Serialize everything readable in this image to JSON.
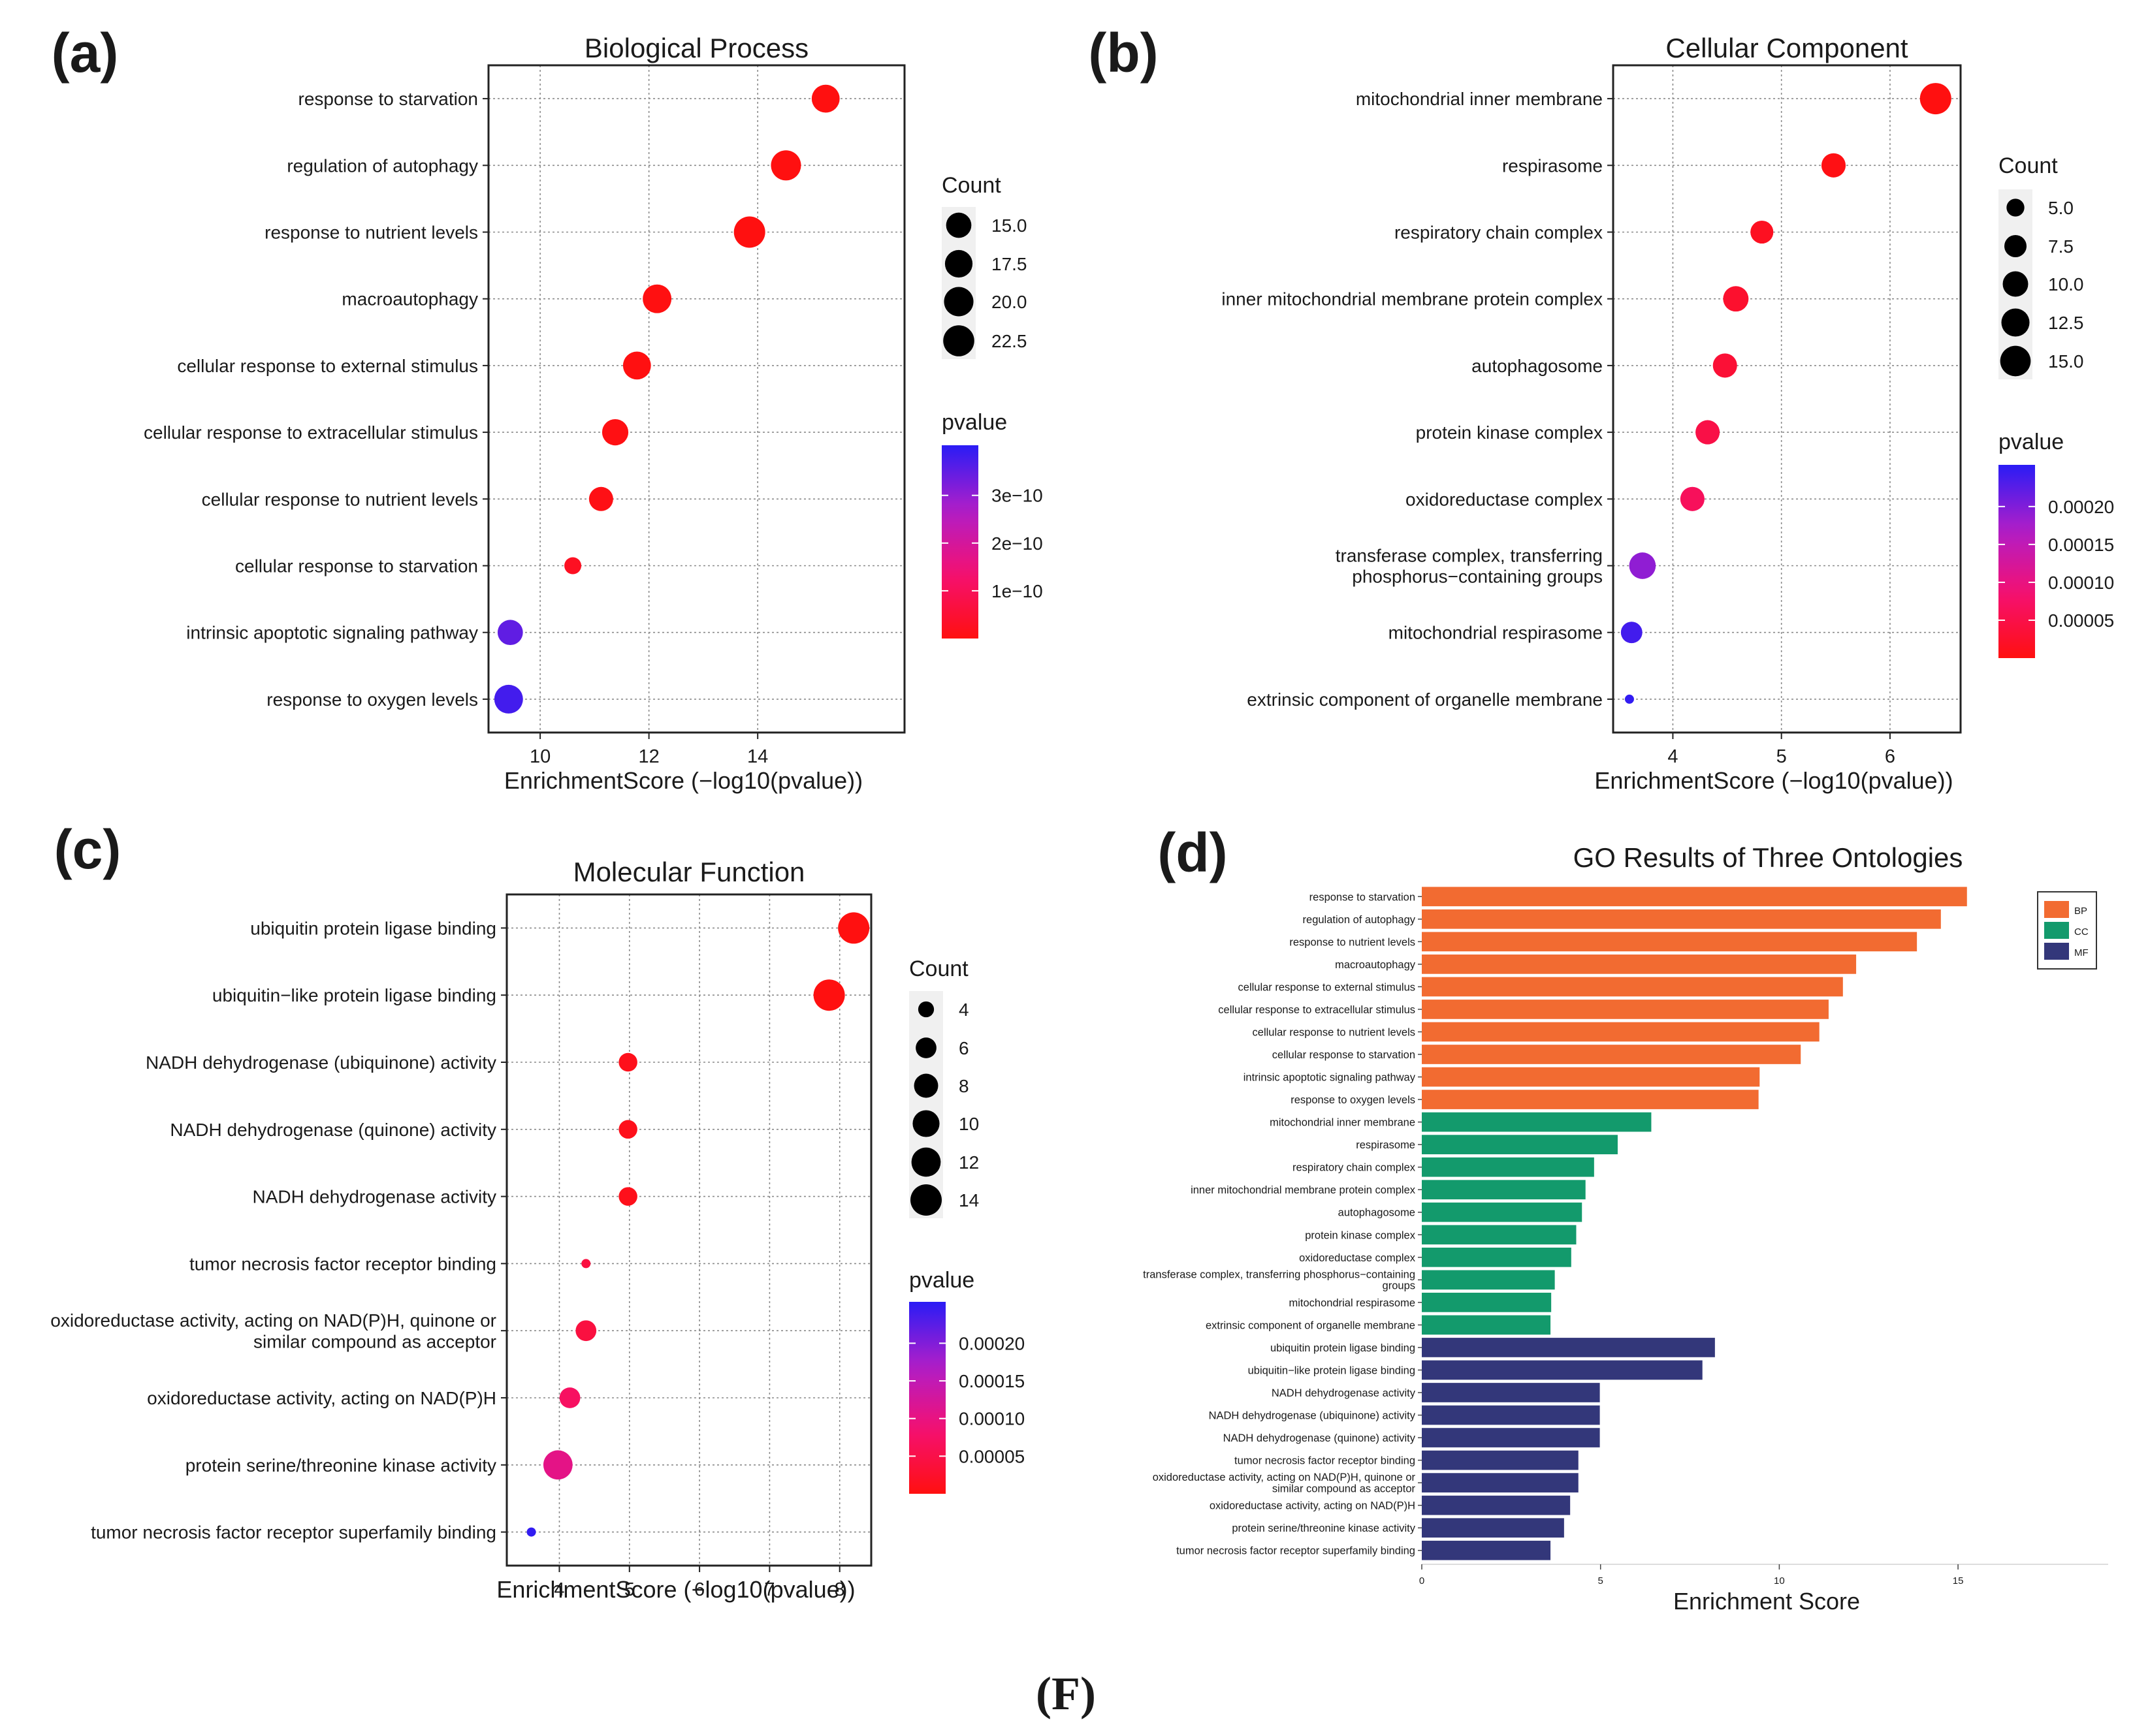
{
  "figure_label": "(F)",
  "chart_data": [
    {
      "panel": "(a)",
      "type": "scatter",
      "title": "Biological Process",
      "xlabel": "EnrichmentScore (−log10(pvalue))",
      "xlim": [
        9.05,
        16.7
      ],
      "xticks": [
        10,
        12,
        14
      ],
      "grid": true,
      "categories": [
        "response to starvation",
        "regulation of autophagy",
        "response to nutrient levels",
        "macroautophagy",
        "cellular response to external stimulus",
        "cellular response to extracellular stimulus",
        "cellular response to nutrient levels",
        "cellular response to starvation",
        "intrinsic apoptotic signaling pathway",
        "response to oxygen levels"
      ],
      "x": [
        15.25,
        14.52,
        13.85,
        12.15,
        11.78,
        11.38,
        11.12,
        10.6,
        9.45,
        9.42
      ],
      "count": [
        18,
        21,
        23,
        19,
        18,
        16,
        14,
        11,
        15,
        19
      ],
      "pvalue": [
        5.6e-16,
        3e-15,
        1.4e-14,
        7.1e-13,
        1.7e-12,
        4.2e-12,
        7.6e-12,
        2.5e-11,
        3.5e-10,
        3.8e-10
      ],
      "legend_count": {
        "title": "Count",
        "values": [
          15.0,
          17.5,
          20.0,
          22.5
        ],
        "labels": [
          "15.0",
          "17.5",
          "20.0",
          "22.5"
        ],
        "size_domain": [
          11,
          23
        ]
      },
      "legend_pvalue": {
        "title": "pvalue",
        "domain": [
          0,
          4.05e-10
        ],
        "ticks": [
          1e-10,
          2e-10,
          3e-10
        ],
        "labels": [
          "1e−10",
          "2e−10",
          "3e−10"
        ]
      },
      "legend_placement": "right"
    },
    {
      "panel": "(b)",
      "type": "scatter",
      "title": "Cellular Component",
      "xlabel": "EnrichmentScore (−log10(pvalue))",
      "xlim": [
        3.45,
        6.65
      ],
      "xticks": [
        4,
        5,
        6
      ],
      "grid": true,
      "categories": [
        "mitochondrial inner membrane",
        "respirasome",
        "respiratory chain complex",
        "inner mitochondrial membrane protein complex",
        "autophagosome",
        "protein kinase complex",
        "oxidoreductase complex",
        "transferase complex, transferring phosphorus−containing groups",
        "mitochondrial respirasome",
        "extrinsic component of organelle membrane"
      ],
      "x": [
        6.42,
        5.48,
        4.82,
        4.58,
        4.48,
        4.32,
        4.18,
        3.72,
        3.62,
        3.6
      ],
      "count": [
        16,
        9,
        8,
        10,
        9,
        9,
        9,
        11,
        7,
        3
      ],
      "pvalue": [
        3.8e-07,
        3.3e-06,
        1.5e-05,
        2.6e-05,
        3.3e-05,
        4.8e-05,
        6.6e-05,
        0.00019,
        0.00024,
        0.00025
      ],
      "legend_count": {
        "title": "Count",
        "values": [
          5.0,
          7.5,
          10.0,
          12.5,
          15.0
        ],
        "labels": [
          "5.0",
          "7.5",
          "10.0",
          "12.5",
          "15.0"
        ],
        "size_domain": [
          3,
          16
        ]
      },
      "legend_pvalue": {
        "title": "pvalue",
        "domain": [
          0,
          0.000255
        ],
        "ticks": [
          5e-05,
          0.0001,
          0.00015,
          0.0002
        ],
        "labels": [
          "0.00005",
          "0.00010",
          "0.00015",
          "0.00020"
        ]
      },
      "legend_placement": "right"
    },
    {
      "panel": "(c)",
      "type": "scatter",
      "title": "Molecular Function",
      "xlabel": "EnrichmentScore (−log10(pvalue))",
      "xlim": [
        3.25,
        8.45
      ],
      "xticks": [
        4,
        5,
        6,
        7,
        8
      ],
      "grid": true,
      "categories": [
        "ubiquitin protein ligase binding",
        "ubiquitin−like protein ligase binding",
        "NADH dehydrogenase (ubiquinone) activity",
        "NADH dehydrogenase (quinone) activity",
        "NADH dehydrogenase activity",
        "tumor necrosis factor receptor binding",
        "oxidoreductase activity, acting on NAD(P)H, quinone or similar compound as acceptor",
        "oxidoreductase activity, acting on NAD(P)H",
        "protein serine/threonine kinase activity",
        "tumor necrosis factor receptor superfamily binding"
      ],
      "x": [
        8.2,
        7.85,
        4.98,
        4.98,
        4.98,
        4.38,
        4.38,
        4.15,
        3.98,
        3.6
      ],
      "count": [
        14,
        14,
        5,
        5,
        5,
        3,
        6,
        6,
        12,
        3
      ],
      "pvalue": [
        6.3e-09,
        1.4e-08,
        1e-05,
        1e-05,
        1e-05,
        4.2e-05,
        4.2e-05,
        7.1e-05,
        0.000105,
        0.00025
      ],
      "legend_count": {
        "title": "Count",
        "values": [
          4,
          6,
          8,
          10,
          12,
          14
        ],
        "labels": [
          "4",
          "6",
          "8",
          "10",
          "12",
          "14"
        ],
        "size_domain": [
          3,
          14
        ]
      },
      "legend_pvalue": {
        "title": "pvalue",
        "domain": [
          0,
          0.000255
        ],
        "ticks": [
          5e-05,
          0.0001,
          0.00015,
          0.0002
        ],
        "labels": [
          "0.00005",
          "0.00010",
          "0.00015",
          "0.00020"
        ]
      },
      "legend_placement": "right"
    },
    {
      "panel": "(d)",
      "type": "bar",
      "orientation": "horizontal",
      "title": "GO Results of Three Ontologies",
      "xlabel": "Enrichment Score",
      "xlim": [
        0,
        19.2
      ],
      "xticks": [
        0,
        5,
        10,
        15
      ],
      "grid": false,
      "legend": {
        "placement": "top-right",
        "entries": [
          {
            "name": "BP",
            "color": "#f26b31"
          },
          {
            "name": "CC",
            "color": "#139a6c"
          },
          {
            "name": "MF",
            "color": "#33377a"
          }
        ]
      },
      "categories": [
        "response to starvation",
        "regulation of autophagy",
        "response to nutrient levels",
        "macroautophagy",
        "cellular response to external stimulus",
        "cellular response to extracellular stimulus",
        "cellular response to nutrient levels",
        "cellular response to starvation",
        "intrinsic apoptotic signaling pathway",
        "response to oxygen levels",
        "mitochondrial inner membrane",
        "respirasome",
        "respiratory chain complex",
        "inner mitochondrial membrane protein complex",
        "autophagosome",
        "protein kinase complex",
        "oxidoreductase complex",
        "transferase complex, transferring phosphorus−containing groups",
        "mitochondrial respirasome",
        "extrinsic component of organelle membrane",
        "ubiquitin protein ligase binding",
        "ubiquitin−like protein ligase binding",
        "NADH dehydrogenase activity",
        "NADH dehydrogenase (ubiquinone) activity",
        "NADH dehydrogenase (quinone) activity",
        "tumor necrosis factor receptor binding",
        "oxidoreductase activity, acting on NAD(P)H, quinone or similar compound as acceptor",
        "oxidoreductase activity, acting on NAD(P)H",
        "protein serine/threonine kinase activity",
        "tumor necrosis factor receptor superfamily binding"
      ],
      "values": [
        15.25,
        14.52,
        13.85,
        12.15,
        11.78,
        11.38,
        11.12,
        10.6,
        9.45,
        9.42,
        6.42,
        5.48,
        4.82,
        4.58,
        4.48,
        4.32,
        4.18,
        3.72,
        3.62,
        3.6,
        8.2,
        7.85,
        4.98,
        4.98,
        4.98,
        4.38,
        4.38,
        4.15,
        3.98,
        3.6
      ],
      "groups": [
        "BP",
        "BP",
        "BP",
        "BP",
        "BP",
        "BP",
        "BP",
        "BP",
        "BP",
        "BP",
        "CC",
        "CC",
        "CC",
        "CC",
        "CC",
        "CC",
        "CC",
        "CC",
        "CC",
        "CC",
        "MF",
        "MF",
        "MF",
        "MF",
        "MF",
        "MF",
        "MF",
        "MF",
        "MF",
        "MF"
      ]
    }
  ]
}
